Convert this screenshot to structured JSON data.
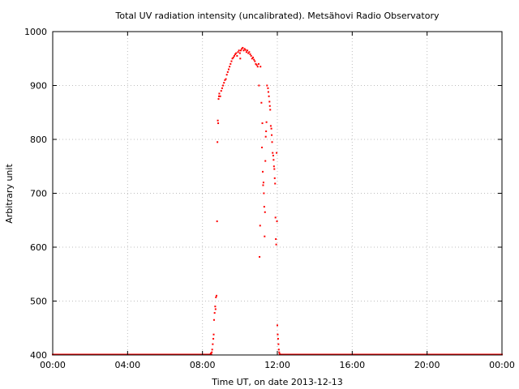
{
  "chart_data": {
    "type": "scatter",
    "title": "Total UV radiation intensity (uncalibrated). Metsähovi Radio Observatory",
    "xlabel": "Time UT, on date 2013-12-13",
    "ylabel": "Arbitrary unit",
    "xlim_hours": [
      0,
      24
    ],
    "ylim": [
      400,
      1000
    ],
    "x_ticks": [
      {
        "hours": 0,
        "label": "00:00"
      },
      {
        "hours": 4,
        "label": "04:00"
      },
      {
        "hours": 8,
        "label": "08:00"
      },
      {
        "hours": 12,
        "label": "12:00"
      },
      {
        "hours": 16,
        "label": "16:00"
      },
      {
        "hours": 20,
        "label": "20:00"
      },
      {
        "hours": 24,
        "label": "00:00"
      }
    ],
    "y_ticks": [
      {
        "value": 400,
        "label": "400"
      },
      {
        "value": 500,
        "label": "500"
      },
      {
        "value": 600,
        "label": "600"
      },
      {
        "value": 700,
        "label": "700"
      },
      {
        "value": 800,
        "label": "800"
      },
      {
        "value": 900,
        "label": "900"
      },
      {
        "value": 1000,
        "label": "1000"
      }
    ],
    "grid": true,
    "marker_color": "#ff0000",
    "baseline_value": 400,
    "baseline_ranges_hours": [
      [
        0,
        8.5
      ],
      [
        12.2,
        24
      ]
    ],
    "series": [
      {
        "points_hours": [
          [
            8.4,
            401
          ],
          [
            8.45,
            403
          ],
          [
            8.5,
            405
          ],
          [
            8.52,
            410
          ],
          [
            8.55,
            420
          ],
          [
            8.58,
            430
          ],
          [
            8.6,
            438
          ],
          [
            8.62,
            465
          ],
          [
            8.65,
            478
          ],
          [
            8.68,
            490
          ],
          [
            8.7,
            485
          ],
          [
            8.72,
            507
          ],
          [
            8.75,
            510
          ],
          [
            8.78,
            648
          ],
          [
            8.8,
            795
          ],
          [
            8.82,
            835
          ],
          [
            8.84,
            830
          ],
          [
            8.86,
            875
          ],
          [
            8.88,
            880
          ],
          [
            8.9,
            885
          ],
          [
            8.95,
            880
          ],
          [
            9.0,
            890
          ],
          [
            9.05,
            895
          ],
          [
            9.1,
            900
          ],
          [
            9.15,
            905
          ],
          [
            9.2,
            910
          ],
          [
            9.25,
            912
          ],
          [
            9.3,
            920
          ],
          [
            9.35,
            925
          ],
          [
            9.4,
            930
          ],
          [
            9.45,
            935
          ],
          [
            9.5,
            940
          ],
          [
            9.55,
            945
          ],
          [
            9.6,
            950
          ],
          [
            9.65,
            952
          ],
          [
            9.7,
            955
          ],
          [
            9.75,
            958
          ],
          [
            9.8,
            960
          ],
          [
            9.85,
            955
          ],
          [
            9.9,
            962
          ],
          [
            9.95,
            965
          ],
          [
            10.0,
            960
          ],
          [
            10.02,
            950
          ],
          [
            10.05,
            965
          ],
          [
            10.1,
            968
          ],
          [
            10.15,
            970
          ],
          [
            10.2,
            965
          ],
          [
            10.25,
            968
          ],
          [
            10.3,
            966
          ],
          [
            10.35,
            962
          ],
          [
            10.4,
            965
          ],
          [
            10.45,
            960
          ],
          [
            10.5,
            962
          ],
          [
            10.55,
            958
          ],
          [
            10.6,
            955
          ],
          [
            10.65,
            950
          ],
          [
            10.7,
            952
          ],
          [
            10.75,
            948
          ],
          [
            10.8,
            945
          ],
          [
            10.85,
            940
          ],
          [
            10.9,
            938
          ],
          [
            10.95,
            935
          ],
          [
            11.0,
            940
          ],
          [
            11.02,
            900
          ],
          [
            11.05,
            582
          ],
          [
            11.08,
            640
          ],
          [
            11.1,
            935
          ],
          [
            11.15,
            868
          ],
          [
            11.18,
            785
          ],
          [
            11.2,
            830
          ],
          [
            11.22,
            740
          ],
          [
            11.24,
            715
          ],
          [
            11.26,
            720
          ],
          [
            11.28,
            700
          ],
          [
            11.3,
            675
          ],
          [
            11.32,
            620
          ],
          [
            11.34,
            665
          ],
          [
            11.36,
            760
          ],
          [
            11.38,
            805
          ],
          [
            11.4,
            815
          ],
          [
            11.42,
            832
          ],
          [
            11.45,
            900
          ],
          [
            11.5,
            895
          ],
          [
            11.52,
            888
          ],
          [
            11.55,
            880
          ],
          [
            11.58,
            870
          ],
          [
            11.6,
            862
          ],
          [
            11.62,
            855
          ],
          [
            11.65,
            825
          ],
          [
            11.68,
            820
          ],
          [
            11.7,
            808
          ],
          [
            11.72,
            795
          ],
          [
            11.75,
            775
          ],
          [
            11.78,
            770
          ],
          [
            11.8,
            762
          ],
          [
            11.82,
            750
          ],
          [
            11.84,
            745
          ],
          [
            11.86,
            728
          ],
          [
            11.88,
            718
          ],
          [
            11.9,
            655
          ],
          [
            11.92,
            615
          ],
          [
            11.94,
            605
          ],
          [
            11.96,
            775
          ],
          [
            11.98,
            648
          ],
          [
            12.0,
            455
          ],
          [
            12.02,
            438
          ],
          [
            12.04,
            430
          ],
          [
            12.06,
            420
          ],
          [
            12.08,
            410
          ],
          [
            12.1,
            405
          ],
          [
            12.12,
            402
          ],
          [
            12.15,
            401
          ]
        ]
      }
    ]
  }
}
